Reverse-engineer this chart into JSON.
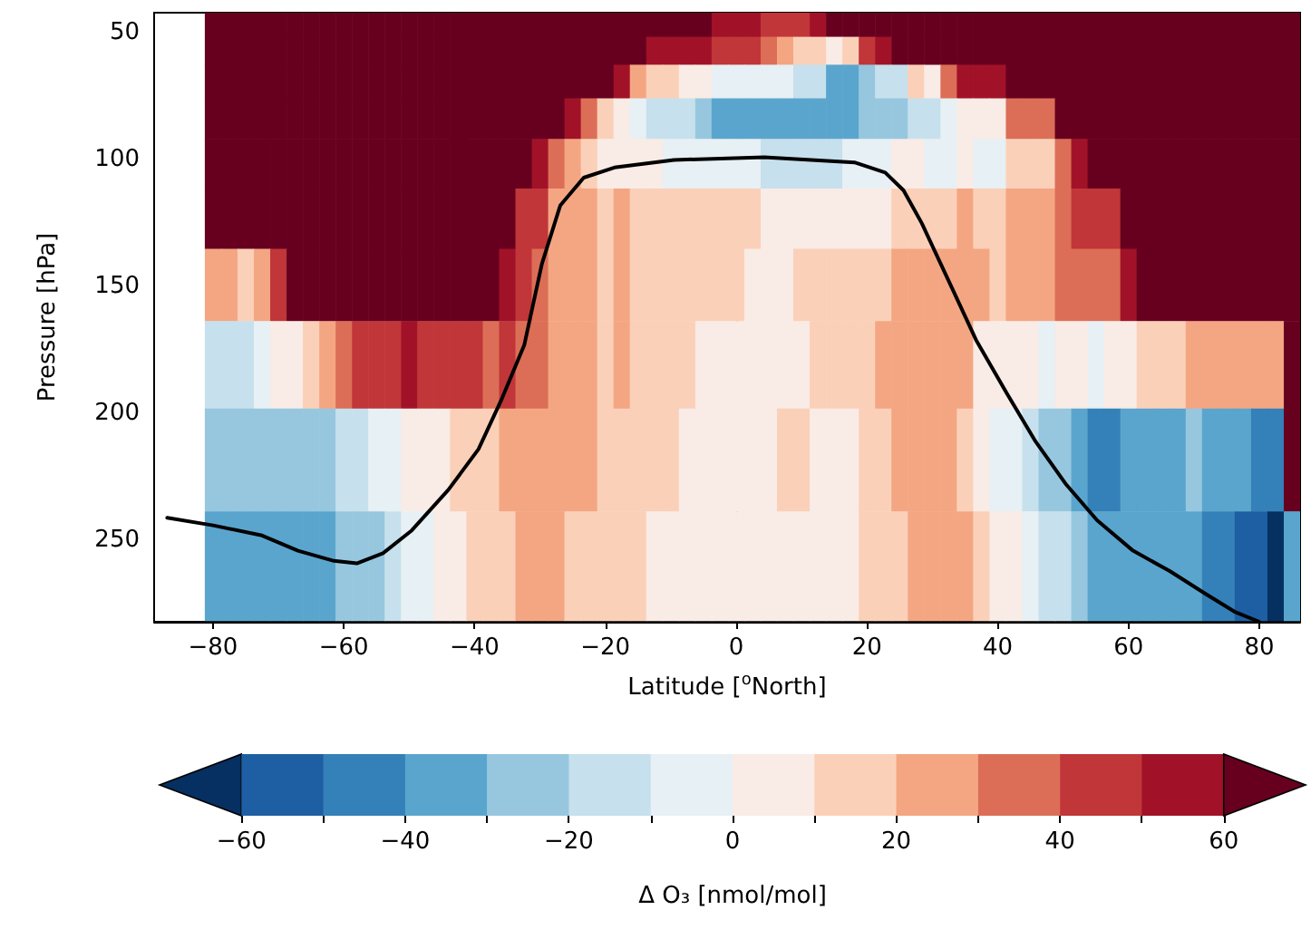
{
  "chart_data": {
    "type": "heatmap",
    "xlabel": "Latitude [$^{o}$North]",
    "ylabel": "Pressure [hPa]",
    "clabel": "Δ O₃ [nmol/mol]",
    "x": [
      -80,
      -77.5,
      -75,
      -72.5,
      -70,
      -67.5,
      -65,
      -62.5,
      -60,
      -57.5,
      -55,
      -52.5,
      -50,
      -47.5,
      -45,
      -42.5,
      -40,
      -37.5,
      -35,
      -32.5,
      -30,
      -27.5,
      -25,
      -22.5,
      -20,
      -17.5,
      -15,
      -12.5,
      -10,
      -7.5,
      -5,
      -2.5,
      0,
      2.5,
      5,
      7.5,
      10,
      12.5,
      15,
      17.5,
      20,
      22.5,
      25,
      27.5,
      30,
      32.5,
      35,
      37.5,
      40,
      42.5,
      45,
      47.5,
      50,
      52.5,
      55,
      57.5,
      60,
      62.5,
      65,
      67.5,
      70,
      72.5,
      75,
      77.5,
      80,
      82.5,
      85
    ],
    "y": [
      46.5,
      56.5,
      68.5,
      83,
      100.5,
      122,
      148,
      179,
      217,
      260
    ],
    "cells": [
      [
        65,
        65,
        65,
        65,
        65,
        65,
        65,
        65,
        65,
        65,
        65,
        65,
        65,
        65,
        65,
        65,
        65,
        65,
        65,
        65,
        65,
        65,
        65,
        65,
        65,
        65,
        65,
        65,
        65,
        65,
        65,
        55,
        55,
        55,
        45,
        45,
        45,
        55,
        65,
        65,
        65,
        65,
        65,
        65,
        65,
        65,
        65,
        65,
        65,
        65,
        65,
        65,
        65,
        65,
        65,
        65,
        65,
        65,
        65,
        65,
        65,
        65,
        65,
        65,
        65,
        65,
        65
      ],
      [
        65,
        65,
        65,
        65,
        65,
        65,
        65,
        65,
        65,
        65,
        65,
        65,
        65,
        65,
        65,
        65,
        65,
        65,
        65,
        65,
        65,
        65,
        65,
        65,
        65,
        65,
        65,
        55,
        55,
        55,
        55,
        45,
        45,
        45,
        35,
        25,
        15,
        15,
        5,
        15,
        45,
        55,
        65,
        65,
        65,
        65,
        65,
        65,
        65,
        65,
        65,
        65,
        65,
        65,
        65,
        65,
        65,
        65,
        65,
        65,
        65,
        65,
        65,
        65,
        65,
        65,
        65
      ],
      [
        65,
        65,
        65,
        65,
        65,
        65,
        65,
        65,
        65,
        65,
        65,
        65,
        65,
        65,
        65,
        65,
        65,
        65,
        65,
        65,
        65,
        65,
        65,
        65,
        65,
        55,
        25,
        15,
        15,
        5,
        5,
        -5,
        -5,
        -5,
        -5,
        -5,
        -15,
        -15,
        -35,
        -35,
        -25,
        -15,
        -15,
        15,
        5,
        35,
        55,
        55,
        55,
        65,
        65,
        65,
        65,
        65,
        65,
        65,
        65,
        65,
        65,
        65,
        65,
        65,
        65,
        65,
        65,
        65,
        65
      ],
      [
        65,
        65,
        65,
        65,
        65,
        65,
        65,
        65,
        65,
        65,
        65,
        65,
        65,
        65,
        65,
        65,
        65,
        65,
        65,
        65,
        65,
        65,
        55,
        35,
        15,
        5,
        -5,
        -15,
        -15,
        -15,
        -25,
        -35,
        -35,
        -35,
        -35,
        -35,
        -35,
        -35,
        -35,
        -35,
        -25,
        -25,
        -25,
        -15,
        -15,
        -5,
        5,
        5,
        5,
        35,
        35,
        35,
        65,
        65,
        65,
        65,
        65,
        65,
        65,
        65,
        65,
        65,
        65,
        65,
        65,
        65,
        65
      ],
      [
        65,
        65,
        65,
        65,
        65,
        65,
        65,
        65,
        65,
        65,
        65,
        65,
        65,
        65,
        65,
        65,
        65,
        65,
        65,
        65,
        55,
        35,
        25,
        15,
        5,
        5,
        5,
        5,
        -5,
        -5,
        -5,
        -5,
        -5,
        -5,
        -15,
        -15,
        -15,
        -15,
        -15,
        -5,
        -5,
        -5,
        5,
        5,
        -5,
        -5,
        5,
        -5,
        -5,
        15,
        15,
        15,
        35,
        55,
        65,
        65,
        65,
        65,
        65,
        65,
        65,
        65,
        65,
        65,
        65,
        65,
        65
      ],
      [
        65,
        65,
        65,
        65,
        65,
        65,
        65,
        65,
        65,
        65,
        65,
        65,
        65,
        65,
        65,
        65,
        65,
        65,
        65,
        45,
        45,
        25,
        25,
        25,
        15,
        25,
        15,
        15,
        15,
        15,
        15,
        15,
        15,
        15,
        5,
        5,
        5,
        5,
        5,
        5,
        5,
        5,
        15,
        15,
        15,
        15,
        25,
        15,
        15,
        25,
        25,
        25,
        35,
        45,
        45,
        45,
        65,
        65,
        65,
        65,
        65,
        65,
        65,
        65,
        65,
        65,
        65
      ],
      [
        25,
        25,
        15,
        25,
        45,
        65,
        65,
        65,
        65,
        65,
        65,
        65,
        65,
        65,
        65,
        65,
        65,
        65,
        55,
        45,
        35,
        25,
        25,
        25,
        15,
        25,
        15,
        15,
        15,
        15,
        15,
        15,
        15,
        5,
        5,
        5,
        15,
        15,
        15,
        15,
        15,
        15,
        25,
        25,
        25,
        25,
        25,
        25,
        15,
        25,
        25,
        25,
        35,
        35,
        35,
        35,
        55,
        65,
        65,
        65,
        65,
        65,
        65,
        65,
        65,
        65,
        65
      ],
      [
        -15,
        -15,
        -15,
        -5,
        5,
        5,
        15,
        25,
        35,
        45,
        45,
        45,
        55,
        45,
        45,
        45,
        45,
        35,
        45,
        35,
        35,
        25,
        25,
        25,
        15,
        25,
        15,
        15,
        15,
        15,
        5,
        5,
        5,
        5,
        5,
        5,
        5,
        15,
        15,
        15,
        15,
        25,
        25,
        25,
        25,
        25,
        25,
        5,
        5,
        5,
        5,
        -5,
        5,
        5,
        -5,
        5,
        5,
        15,
        15,
        15,
        25,
        25,
        25,
        25,
        25,
        25,
        65
      ],
      [
        -25,
        -25,
        -25,
        -25,
        -25,
        -25,
        -25,
        -25,
        -15,
        -15,
        -5,
        -5,
        5,
        5,
        5,
        15,
        15,
        15,
        25,
        25,
        25,
        25,
        25,
        25,
        15,
        15,
        15,
        15,
        15,
        5,
        5,
        5,
        5,
        5,
        5,
        15,
        15,
        5,
        5,
        5,
        15,
        15,
        25,
        25,
        25,
        25,
        15,
        5,
        -5,
        -5,
        -15,
        -25,
        -25,
        -35,
        -45,
        -45,
        -35,
        -35,
        -35,
        -35,
        -25,
        -35,
        -35,
        -35,
        -45,
        -45,
        65
      ],
      [
        -35,
        -35,
        -35,
        -35,
        -35,
        -35,
        -35,
        -35,
        -25,
        -25,
        -25,
        -15,
        -5,
        -5,
        5,
        5,
        15,
        15,
        15,
        25,
        25,
        25,
        15,
        15,
        15,
        15,
        15,
        5,
        5,
        5,
        5,
        5,
        5,
        5,
        5,
        5,
        5,
        5,
        5,
        5,
        15,
        15,
        15,
        25,
        25,
        25,
        25,
        15,
        5,
        5,
        -5,
        -15,
        -15,
        -25,
        -35,
        -35,
        -35,
        -35,
        -35,
        -35,
        -35,
        -45,
        -45,
        -55,
        -55,
        -65,
        -35
      ]
    ],
    "colors": [
      "#053061",
      "#1d5fa2",
      "#3480b9",
      "#5aa5cd",
      "#96c7df",
      "#c7e0ed",
      "#e7f0f4",
      "#f9ebe5",
      "#fbd0b9",
      "#f4a683",
      "#dc6e57",
      "#c13639",
      "#a11228",
      "#67001f"
    ],
    "clim": [
      -70,
      70
    ],
    "cticks": [
      -60,
      {
        "value": -50,
        "label": null
      },
      -40,
      {
        "value": -30,
        "label": null
      },
      -20,
      {
        "value": -10,
        "label": null
      },
      0,
      {
        "value": 10,
        "label": null
      },
      20,
      {
        "value": 30,
        "label": null
      },
      40,
      {
        "value": 50,
        "label": null
      },
      60
    ],
    "xlim": [
      -89,
      86.25
    ],
    "xticks": [
      -80,
      -60,
      -40,
      -20,
      0,
      20,
      40,
      60,
      80
    ],
    "ylim": [
      282,
      42
    ],
    "yticks": [
      50,
      100,
      150,
      200,
      250
    ],
    "series": [
      {
        "type": "line",
        "color": "#000000",
        "x": [
          -87,
          -80,
          -72.5,
          -67,
          -61.5,
          -58,
          -54,
          -49.6,
          -44,
          -39.4,
          -35.8,
          -32.4,
          -29.7,
          -26.9,
          -23.3,
          -18.6,
          -9.5,
          4.3,
          18.1,
          22.8,
          25.6,
          28.4,
          33.1,
          36.7,
          41.4,
          45.8,
          50.5,
          55.2,
          60.7,
          66.3,
          71.8,
          76.2,
          80
        ],
        "values": [
          241,
          244,
          248,
          254,
          258,
          259,
          255,
          246,
          230,
          214,
          194,
          173,
          141,
          118,
          107,
          103,
          100,
          99,
          101,
          105,
          112,
          125,
          151,
          171,
          192,
          211,
          228,
          242,
          254,
          262,
          271,
          278,
          282
        ]
      }
    ]
  }
}
